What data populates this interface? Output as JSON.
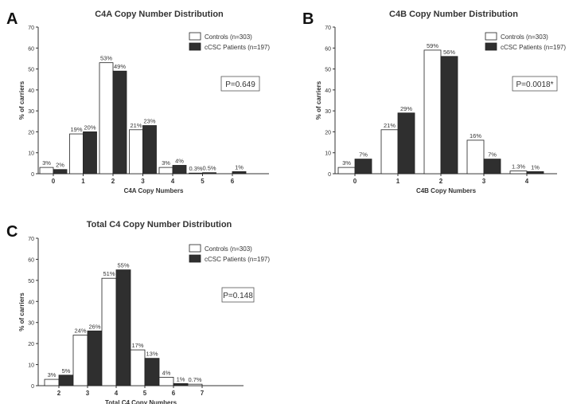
{
  "colors": {
    "controls_fill": "#ffffff",
    "patients_fill": "#2f2f2f",
    "axis": "#333333",
    "text": "#333333"
  },
  "chart_data": [
    {
      "panel": "A",
      "type": "bar",
      "title": "C4A Copy Number Distribution",
      "xlabel": "C4A Copy Numbers",
      "ylabel": "% of carriers",
      "ylim": [
        0,
        70
      ],
      "yticks": [
        0,
        10,
        20,
        30,
        40,
        50,
        60,
        70
      ],
      "categories": [
        "0",
        "1",
        "2",
        "3",
        "4",
        "5",
        "6"
      ],
      "series": [
        {
          "name": "Controls (n=303)",
          "values": [
            3,
            19,
            53,
            21,
            3,
            0.3,
            0
          ],
          "labels": [
            "3%",
            "19%",
            "53%",
            "21%",
            "3%",
            "0.3%",
            ""
          ]
        },
        {
          "name": "cCSC Patients (n=197)",
          "values": [
            2,
            20,
            49,
            23,
            4,
            0.5,
            1
          ],
          "labels": [
            "2%",
            "20%",
            "49%",
            "23%",
            "4%",
            "0.5%",
            "1%"
          ]
        }
      ],
      "legend": "top-right",
      "annotation": "P=0.649"
    },
    {
      "panel": "B",
      "type": "bar",
      "title": "C4B Copy Number Distribution",
      "xlabel": "C4B Copy Numbers",
      "ylabel": "% of carriers",
      "ylim": [
        0,
        70
      ],
      "yticks": [
        0,
        10,
        20,
        30,
        40,
        50,
        60,
        70
      ],
      "categories": [
        "0",
        "1",
        "2",
        "3",
        "4"
      ],
      "series": [
        {
          "name": "Controls (n=303)",
          "values": [
            3,
            21,
            59,
            16,
            1.3
          ],
          "labels": [
            "3%",
            "21%",
            "59%",
            "16%",
            "1.3%"
          ]
        },
        {
          "name": "cCSC Patients (n=197)",
          "values": [
            7,
            29,
            56,
            7,
            1
          ],
          "labels": [
            "7%",
            "29%",
            "56%",
            "7%",
            "1%"
          ]
        }
      ],
      "legend": "top-right",
      "annotation": "P=0.0018*"
    },
    {
      "panel": "C",
      "type": "bar",
      "title": "Total C4 Copy Number Distribution",
      "xlabel": "Total C4 Copy Numbers",
      "ylabel": "% of carriers",
      "ylim": [
        0,
        70
      ],
      "yticks": [
        0,
        10,
        20,
        30,
        40,
        50,
        60,
        70
      ],
      "categories": [
        "2",
        "3",
        "4",
        "5",
        "6",
        "7"
      ],
      "series": [
        {
          "name": "Controls (n=303)",
          "values": [
            3,
            24,
            51,
            17,
            4,
            0.7
          ],
          "labels": [
            "3%",
            "24%",
            "51%",
            "17%",
            "4%",
            "0.7%"
          ]
        },
        {
          "name": "cCSC Patients (n=197)",
          "values": [
            5,
            26,
            55,
            13,
            1,
            0
          ],
          "labels": [
            "5%",
            "26%",
            "55%",
            "13%",
            "1%",
            ""
          ]
        }
      ],
      "legend": "top-right",
      "annotation": "P=0.148"
    }
  ]
}
